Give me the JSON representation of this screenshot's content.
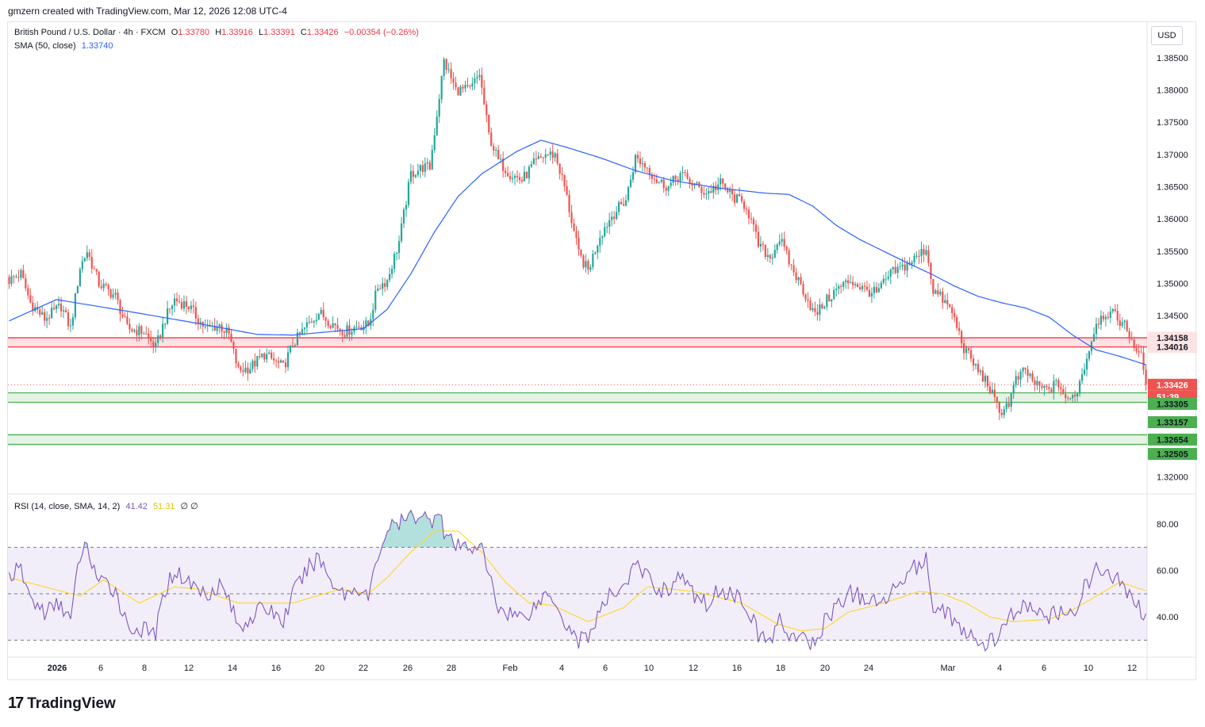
{
  "header": {
    "credit": "gmzern created with TradingView.com, Mar 12, 2026 12:08 UTC-4"
  },
  "legend": {
    "symbol": "British Pound / U.S. Dollar · 4h · FXCM",
    "o_label": "O",
    "o": "1.33780",
    "h_label": "H",
    "h": "1.33916",
    "l_label": "L",
    "l": "1.33391",
    "c_label": "C",
    "c": "1.33426",
    "change": "−0.00354 (−0.26%)",
    "sma_label": "SMA (50, close)",
    "sma_value": "1.33740",
    "rsi_label": "RSI (14, close, SMA, 14, 2)",
    "rsi_value": "41.42",
    "rsi_ma_value": "51.31",
    "rsi_extra": "∅ ∅"
  },
  "currency_button": "USD",
  "brand": {
    "mark": "17",
    "name": "TradingView"
  },
  "colors": {
    "up": "#26a69a",
    "down": "#ef5350",
    "sma": "#2962ff",
    "rsi": "#7e57c2",
    "rsi_ma": "#fdd835",
    "resistance": "#f23645",
    "support": "#4caf50"
  },
  "chart_data": [
    {
      "type": "candlestick",
      "title": "British Pound / U.S. Dollar · 4h · FXCM",
      "ylim": [
        1.3175,
        1.3905
      ],
      "y_ticks": [
        "1.38500",
        "1.38000",
        "1.37500",
        "1.37000",
        "1.36500",
        "1.36000",
        "1.35500",
        "1.35000",
        "1.34500",
        "1.32000"
      ],
      "x_ticks": [
        "2026",
        "6",
        "8",
        "12",
        "14",
        "16",
        "20",
        "22",
        "26",
        "28",
        "Feb",
        "4",
        "6",
        "10",
        "12",
        "16",
        "18",
        "20",
        "24",
        "Mar",
        "4",
        "6",
        "10",
        "12"
      ],
      "close_path": [
        [
          0,
          1.3505
        ],
        [
          5,
          1.3515
        ],
        [
          9,
          1.347
        ],
        [
          15,
          1.3445
        ],
        [
          22,
          1.3465
        ],
        [
          26,
          1.343
        ],
        [
          30,
          1.3525
        ],
        [
          33,
          1.355
        ],
        [
          38,
          1.35
        ],
        [
          45,
          1.348
        ],
        [
          50,
          1.343
        ],
        [
          57,
          1.3425
        ],
        [
          62,
          1.34
        ],
        [
          66,
          1.3445
        ],
        [
          70,
          1.3475
        ],
        [
          76,
          1.3465
        ],
        [
          83,
          1.343
        ],
        [
          89,
          1.3435
        ],
        [
          93,
          1.342
        ],
        [
          97,
          1.3365
        ],
        [
          102,
          1.337
        ],
        [
          108,
          1.339
        ],
        [
          112,
          1.338
        ],
        [
          116,
          1.337
        ],
        [
          120,
          1.3405
        ],
        [
          126,
          1.3435
        ],
        [
          131,
          1.3455
        ],
        [
          136,
          1.344
        ],
        [
          142,
          1.3425
        ],
        [
          148,
          1.3435
        ],
        [
          152,
          1.3435
        ],
        [
          156,
          1.3495
        ],
        [
          160,
          1.3505
        ],
        [
          165,
          1.3565
        ],
        [
          170,
          1.367
        ],
        [
          175,
          1.368
        ],
        [
          178,
          1.368
        ],
        [
          182,
          1.379
        ],
        [
          184,
          1.3845
        ],
        [
          189,
          1.38
        ],
        [
          195,
          1.38
        ],
        [
          199,
          1.3825
        ],
        [
          203,
          1.373
        ],
        [
          207,
          1.369
        ],
        [
          212,
          1.367
        ],
        [
          217,
          1.366
        ],
        [
          222,
          1.3685
        ],
        [
          227,
          1.37
        ],
        [
          231,
          1.37
        ],
        [
          235,
          1.365
        ],
        [
          241,
          1.3545
        ],
        [
          245,
          1.352
        ],
        [
          250,
          1.3575
        ],
        [
          255,
          1.3605
        ],
        [
          261,
          1.363
        ],
        [
          265,
          1.3695
        ],
        [
          270,
          1.368
        ],
        [
          274,
          1.366
        ],
        [
          279,
          1.365
        ],
        [
          284,
          1.367
        ],
        [
          289,
          1.3655
        ],
        [
          295,
          1.364
        ],
        [
          301,
          1.3655
        ],
        [
          306,
          1.3635
        ],
        [
          312,
          1.362
        ],
        [
          317,
          1.356
        ],
        [
          322,
          1.354
        ],
        [
          326,
          1.357
        ],
        [
          331,
          1.3525
        ],
        [
          336,
          1.349
        ],
        [
          341,
          1.345
        ],
        [
          345,
          1.347
        ],
        [
          350,
          1.349
        ],
        [
          356,
          1.3505
        ],
        [
          362,
          1.349
        ],
        [
          367,
          1.3485
        ],
        [
          373,
          1.3515
        ],
        [
          378,
          1.3525
        ],
        [
          384,
          1.354
        ],
        [
          388,
          1.3555
        ],
        [
          391,
          1.349
        ],
        [
          395,
          1.3475
        ],
        [
          399,
          1.3455
        ],
        [
          404,
          1.34
        ],
        [
          409,
          1.337
        ],
        [
          414,
          1.3345
        ],
        [
          419,
          1.33
        ],
        [
          423,
          1.3315
        ],
        [
          426,
          1.335
        ],
        [
          430,
          1.3365
        ],
        [
          435,
          1.334
        ],
        [
          439,
          1.3335
        ],
        [
          444,
          1.3345
        ],
        [
          448,
          1.3315
        ],
        [
          452,
          1.3335
        ],
        [
          456,
          1.3385
        ],
        [
          460,
          1.344
        ],
        [
          464,
          1.3455
        ],
        [
          468,
          1.345
        ],
        [
          472,
          1.3435
        ],
        [
          476,
          1.3405
        ],
        [
          479,
          1.3385
        ],
        [
          481,
          1.3343
        ]
      ],
      "sma_50": [
        [
          0,
          1.3442
        ],
        [
          20,
          1.3475
        ],
        [
          50,
          1.3457
        ],
        [
          80,
          1.3438
        ],
        [
          105,
          1.3421
        ],
        [
          120,
          1.342
        ],
        [
          150,
          1.343
        ],
        [
          160,
          1.346
        ],
        [
          170,
          1.3515
        ],
        [
          180,
          1.358
        ],
        [
          190,
          1.3635
        ],
        [
          200,
          1.367
        ],
        [
          215,
          1.3705
        ],
        [
          225,
          1.3722
        ],
        [
          235,
          1.3712
        ],
        [
          250,
          1.3695
        ],
        [
          265,
          1.3675
        ],
        [
          280,
          1.366
        ],
        [
          300,
          1.3648
        ],
        [
          320,
          1.364
        ],
        [
          330,
          1.3638
        ],
        [
          340,
          1.362
        ],
        [
          350,
          1.359
        ],
        [
          360,
          1.3568
        ],
        [
          370,
          1.355
        ],
        [
          380,
          1.3532
        ],
        [
          390,
          1.3515
        ],
        [
          400,
          1.3496
        ],
        [
          410,
          1.348
        ],
        [
          420,
          1.347
        ],
        [
          430,
          1.3462
        ],
        [
          440,
          1.3448
        ],
        [
          450,
          1.342
        ],
        [
          460,
          1.3397
        ],
        [
          470,
          1.3387
        ],
        [
          481,
          1.3374
        ]
      ],
      "zones": [
        {
          "kind": "resistance",
          "top": 1.34158,
          "bottom": 1.34016
        },
        {
          "kind": "support",
          "top": 1.33305,
          "bottom": 1.33157
        },
        {
          "kind": "support",
          "top": 1.32654,
          "bottom": 1.32505
        }
      ],
      "price_labels": [
        {
          "text": "1.34158",
          "kind": "resistance"
        },
        {
          "text": "1.34016",
          "kind": "resistance"
        },
        {
          "text": "1.33426",
          "kind": "last"
        },
        {
          "text": "51:39",
          "kind": "countdown"
        },
        {
          "text": "1.33305",
          "kind": "support"
        },
        {
          "text": "1.33157",
          "kind": "support"
        },
        {
          "text": "1.32654",
          "kind": "support"
        },
        {
          "text": "1.32505",
          "kind": "support"
        }
      ]
    },
    {
      "type": "line",
      "title": "RSI (14, close, SMA, 14, 2)",
      "ylim": [
        23,
        92
      ],
      "bands": {
        "upper": 70,
        "middle": 50,
        "lower": 30
      },
      "y_ticks": [
        "80.00",
        "60.00",
        "40.00"
      ],
      "series": [
        {
          "name": "RSI",
          "values": [
            [
              0,
              58
            ],
            [
              5,
              60
            ],
            [
              9,
              48
            ],
            [
              15,
              42
            ],
            [
              22,
              46
            ],
            [
              26,
              38
            ],
            [
              30,
              67
            ],
            [
              33,
              70
            ],
            [
              38,
              55
            ],
            [
              45,
              52
            ],
            [
              50,
              36
            ],
            [
              57,
              34
            ],
            [
              62,
              33
            ],
            [
              66,
              52
            ],
            [
              70,
              60
            ],
            [
              76,
              55
            ],
            [
              83,
              50
            ],
            [
              89,
              54
            ],
            [
              93,
              48
            ],
            [
              97,
              35
            ],
            [
              102,
              40
            ],
            [
              108,
              44
            ],
            [
              112,
              42
            ],
            [
              116,
              38
            ],
            [
              120,
              50
            ],
            [
              126,
              60
            ],
            [
              131,
              66
            ],
            [
              136,
              56
            ],
            [
              142,
              50
            ],
            [
              148,
              53
            ],
            [
              152,
              48
            ],
            [
              156,
              66
            ],
            [
              160,
              78
            ],
            [
              165,
              80
            ],
            [
              170,
              83
            ],
            [
              175,
              85
            ],
            [
              178,
              80
            ],
            [
              182,
              88
            ],
            [
              184,
              76
            ],
            [
              189,
              70
            ],
            [
              195,
              70
            ],
            [
              199,
              72
            ],
            [
              203,
              58
            ],
            [
              207,
              44
            ],
            [
              212,
              42
            ],
            [
              217,
              40
            ],
            [
              222,
              44
            ],
            [
              227,
              50
            ],
            [
              231,
              48
            ],
            [
              235,
              38
            ],
            [
              241,
              30
            ],
            [
              245,
              32
            ],
            [
              250,
              42
            ],
            [
              255,
              50
            ],
            [
              261,
              55
            ],
            [
              265,
              62
            ],
            [
              270,
              58
            ],
            [
              274,
              52
            ],
            [
              279,
              52
            ],
            [
              284,
              58
            ],
            [
              289,
              50
            ],
            [
              295,
              46
            ],
            [
              301,
              52
            ],
            [
              306,
              50
            ],
            [
              312,
              46
            ],
            [
              317,
              32
            ],
            [
              322,
              30
            ],
            [
              326,
              38
            ],
            [
              331,
              32
            ],
            [
              336,
              30
            ],
            [
              341,
              28
            ],
            [
              345,
              38
            ],
            [
              350,
              45
            ],
            [
              356,
              50
            ],
            [
              362,
              48
            ],
            [
              367,
              45
            ],
            [
              373,
              50
            ],
            [
              378,
              58
            ],
            [
              384,
              62
            ],
            [
              388,
              64
            ],
            [
              391,
              45
            ],
            [
              395,
              44
            ],
            [
              399,
              40
            ],
            [
              404,
              32
            ],
            [
              409,
              30
            ],
            [
              414,
              28
            ],
            [
              419,
              32
            ],
            [
              423,
              38
            ],
            [
              426,
              44
            ],
            [
              430,
              45
            ],
            [
              435,
              41
            ],
            [
              439,
              40
            ],
            [
              444,
              42
            ],
            [
              448,
              38
            ],
            [
              452,
              46
            ],
            [
              456,
              55
            ],
            [
              460,
              60
            ],
            [
              464,
              59
            ],
            [
              468,
              56
            ],
            [
              472,
              53
            ],
            [
              476,
              46
            ],
            [
              479,
              43
            ],
            [
              481,
              41.42
            ]
          ]
        },
        {
          "name": "RSI-based MA",
          "values": [
            [
              0,
              57
            ],
            [
              15,
              53
            ],
            [
              30,
              49
            ],
            [
              40,
              56
            ],
            [
              55,
              46
            ],
            [
              70,
              53
            ],
            [
              80,
              52
            ],
            [
              97,
              46
            ],
            [
              120,
              46
            ],
            [
              140,
              52
            ],
            [
              152,
              50
            ],
            [
              160,
              57
            ],
            [
              170,
              68
            ],
            [
              180,
              77
            ],
            [
              190,
              77
            ],
            [
              200,
              68
            ],
            [
              210,
              55
            ],
            [
              220,
              46
            ],
            [
              230,
              45
            ],
            [
              245,
              38
            ],
            [
              260,
              44
            ],
            [
              270,
              53
            ],
            [
              290,
              51
            ],
            [
              310,
              46
            ],
            [
              325,
              37
            ],
            [
              335,
              34
            ],
            [
              345,
              35
            ],
            [
              355,
              42
            ],
            [
              370,
              46
            ],
            [
              385,
              51
            ],
            [
              395,
              50
            ],
            [
              405,
              46
            ],
            [
              415,
              40
            ],
            [
              425,
              38
            ],
            [
              440,
              39
            ],
            [
              450,
              43
            ],
            [
              460,
              49
            ],
            [
              470,
              55
            ],
            [
              481,
              51.31
            ]
          ]
        }
      ]
    }
  ]
}
